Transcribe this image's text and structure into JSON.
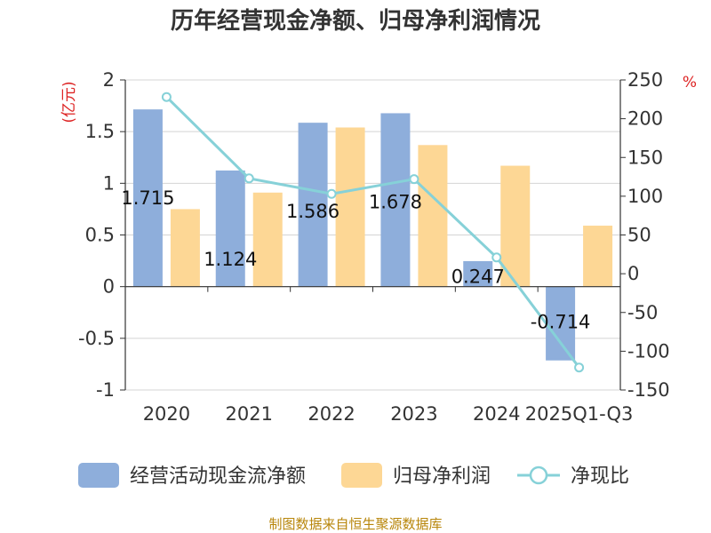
{
  "chart_data": {
    "type": "bar+line",
    "title": "历年经营现金净额、归母净利润情况",
    "categories": [
      "2020",
      "2021",
      "2022",
      "2023",
      "2024",
      "2025Q1-Q3"
    ],
    "series": [
      {
        "name": "经营活动现金流净额",
        "type": "bar",
        "axis": "left",
        "color": "#8eaedb",
        "values": [
          1.715,
          1.124,
          1.586,
          1.678,
          0.247,
          -0.714
        ],
        "labels": [
          "1.715",
          "1.124",
          "1.586",
          "1.678",
          "0.247",
          "-0.714"
        ]
      },
      {
        "name": "归母净利润",
        "type": "bar",
        "axis": "left",
        "color": "#fdd795",
        "values": [
          0.75,
          0.91,
          1.54,
          1.37,
          1.17,
          0.59
        ]
      },
      {
        "name": "净现比",
        "type": "line",
        "axis": "right",
        "color": "#86d1d8",
        "values": [
          228,
          123,
          103,
          122,
          21,
          -121
        ]
      }
    ],
    "y_left": {
      "unit": "(亿元)",
      "min": -1,
      "max": 2,
      "ticks": [
        2,
        1.5,
        1,
        0.5,
        0,
        -0.5,
        -1
      ],
      "tick_labels": [
        "2",
        "1.5",
        "1",
        "0.5",
        "0",
        "-0.5",
        "-1"
      ]
    },
    "y_right": {
      "unit": "%",
      "min": -150,
      "max": 250,
      "ticks": [
        250,
        200,
        150,
        100,
        50,
        0,
        -50,
        -100,
        -150
      ],
      "tick_labels": [
        "250",
        "200",
        "150",
        "100",
        "50",
        "0",
        "-50",
        "-100",
        "-150"
      ]
    },
    "grid": true,
    "legend_position": "bottom"
  },
  "source": "制图数据来自恒生聚源数据库"
}
